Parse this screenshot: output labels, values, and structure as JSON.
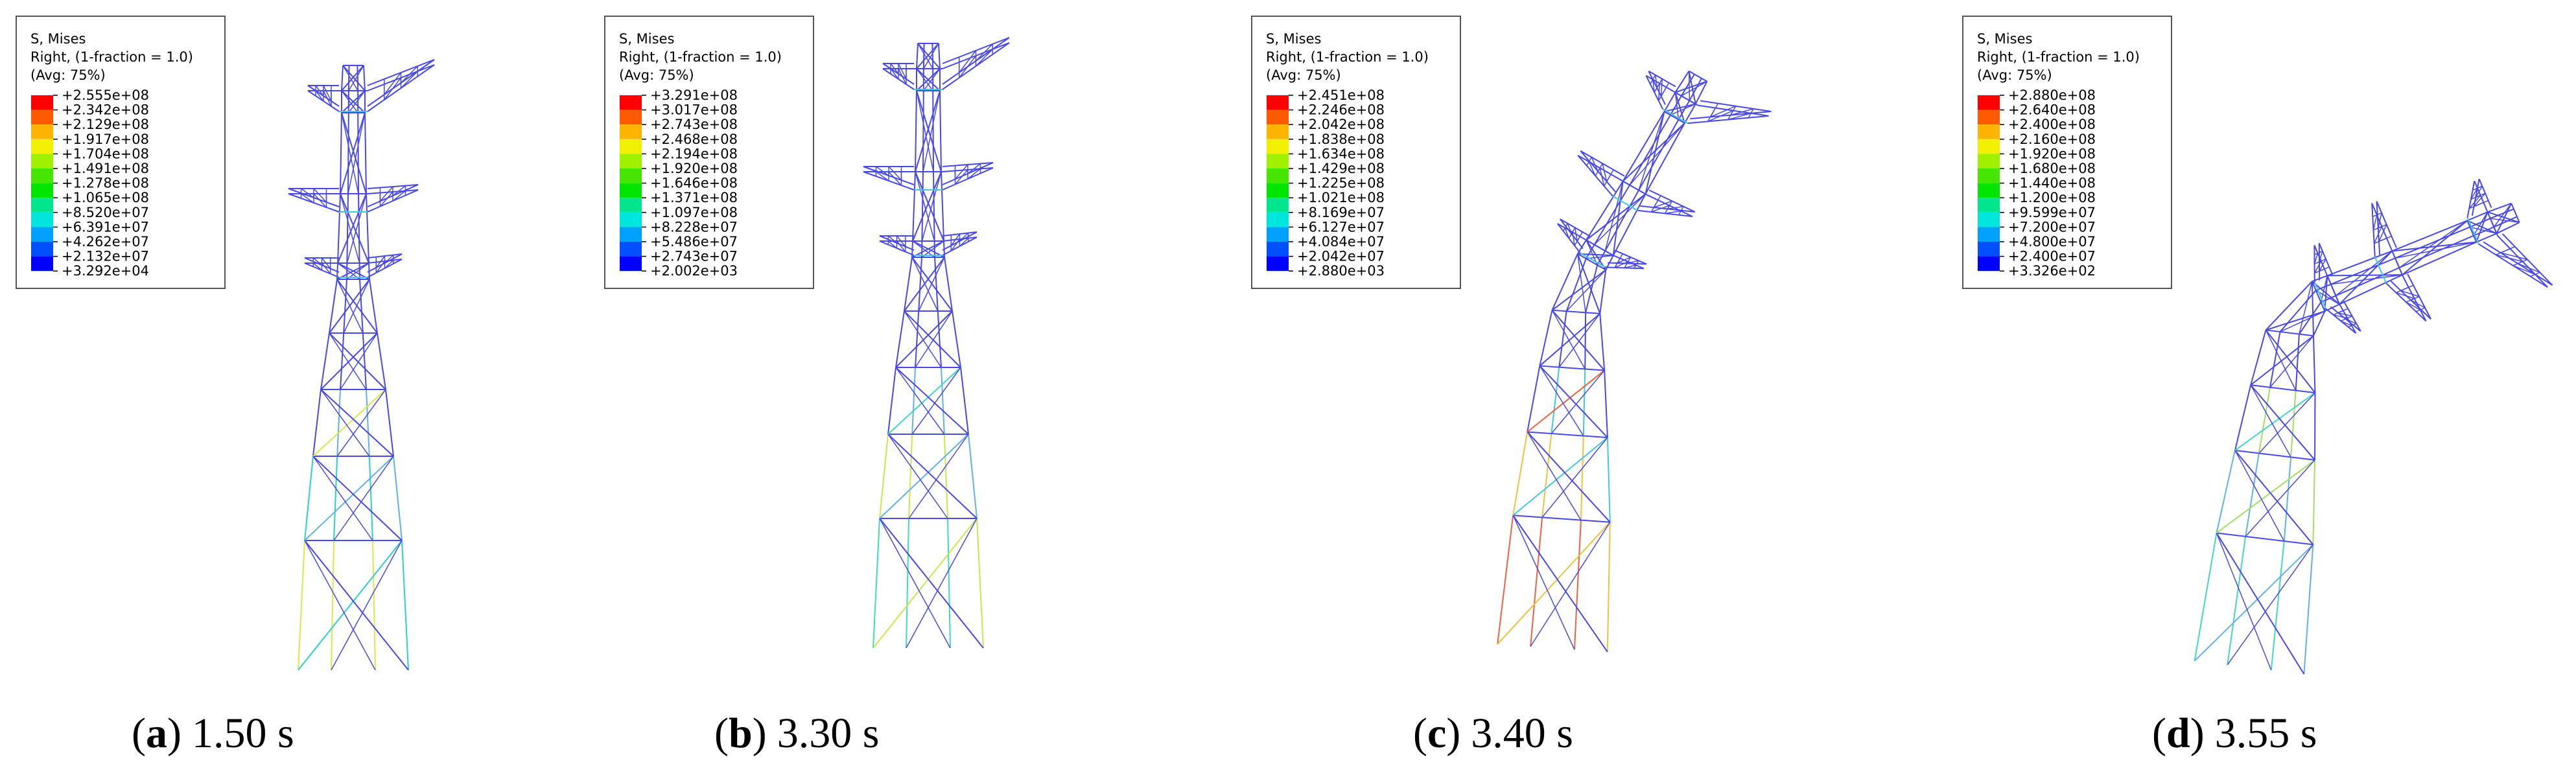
{
  "panels": [
    {
      "legend": {
        "title": "S, Mises",
        "subtitle": "Right, (1-fraction = 1.0)",
        "avg": "(Avg: 75%)",
        "values": [
          "+2.555e+08",
          "+2.342e+08",
          "+2.129e+08",
          "+1.917e+08",
          "+1.704e+08",
          "+1.491e+08",
          "+1.278e+08",
          "+1.065e+08",
          "+8.520e+07",
          "+6.391e+07",
          "+4.262e+07",
          "+2.132e+07",
          "+3.292e+04"
        ]
      },
      "caption": {
        "open": "(",
        "letter": "a",
        "close": ")",
        "time": "1.50 s"
      }
    },
    {
      "legend": {
        "title": "S, Mises",
        "subtitle": "Right, (1-fraction = 1.0)",
        "avg": "(Avg: 75%)",
        "values": [
          "+3.291e+08",
          "+3.017e+08",
          "+2.743e+08",
          "+2.468e+08",
          "+2.194e+08",
          "+1.920e+08",
          "+1.646e+08",
          "+1.371e+08",
          "+1.097e+08",
          "+8.228e+07",
          "+5.486e+07",
          "+2.743e+07",
          "+2.002e+03"
        ]
      },
      "caption": {
        "open": "(",
        "letter": "b",
        "close": ")",
        "time": "3.30 s"
      }
    },
    {
      "legend": {
        "title": "S, Mises",
        "subtitle": "Right, (1-fraction = 1.0)",
        "avg": "(Avg: 75%)",
        "values": [
          "+2.451e+08",
          "+2.246e+08",
          "+2.042e+08",
          "+1.838e+08",
          "+1.634e+08",
          "+1.429e+08",
          "+1.225e+08",
          "+1.021e+08",
          "+8.169e+07",
          "+6.127e+07",
          "+4.084e+07",
          "+2.042e+07",
          "+2.880e+03"
        ]
      },
      "caption": {
        "open": "(",
        "letter": "c",
        "close": ")",
        "time": "3.40 s"
      }
    },
    {
      "legend": {
        "title": "S, Mises",
        "subtitle": "Right, (1-fraction = 1.0)",
        "avg": "(Avg: 75%)",
        "values": [
          "+2.880e+08",
          "+2.640e+08",
          "+2.400e+08",
          "+2.160e+08",
          "+1.920e+08",
          "+1.680e+08",
          "+1.440e+08",
          "+1.200e+08",
          "+9.599e+07",
          "+7.200e+07",
          "+4.800e+07",
          "+2.400e+07",
          "+3.326e+02"
        ]
      },
      "caption": {
        "open": "(",
        "letter": "d",
        "close": ")",
        "time": "3.55 s"
      }
    }
  ]
}
